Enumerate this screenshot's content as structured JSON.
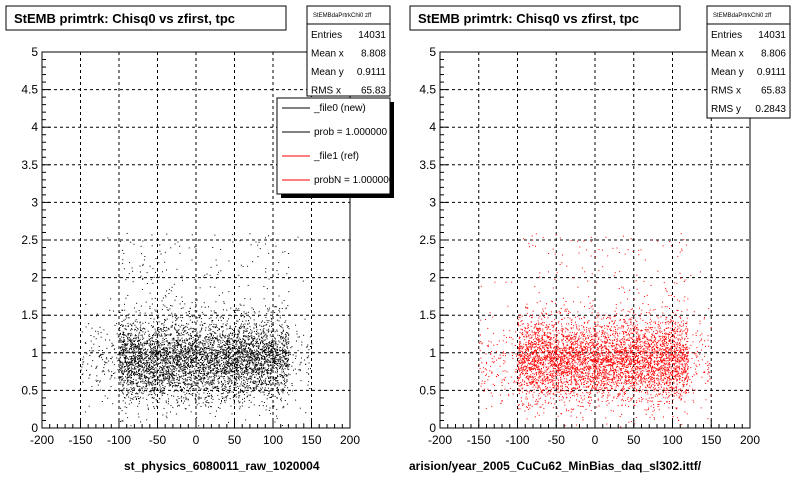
{
  "colors": {
    "new": "#000000",
    "ref": "#ff0000"
  },
  "chart_data": [
    {
      "type": "scatter",
      "title": "StEMB primtrk: Chisq0 vs zfirst, tpc",
      "xlabel": "st_physics_6080011_raw_1020004",
      "ylabel": "",
      "xlim": [
        -200,
        200
      ],
      "ylim": [
        0,
        5
      ],
      "x_ticks": [
        "-200",
        "-150",
        "-100",
        "-50",
        "0",
        "50",
        "100",
        "150",
        "200"
      ],
      "y_ticks": [
        "0",
        "0.5",
        "1",
        "1.5",
        "2",
        "2.5",
        "3",
        "3.5",
        "4",
        "4.5",
        "5"
      ],
      "grid": true,
      "marker_color": "#000000",
      "stats": {
        "name": "StEMBdaPrtrkChi0 zff",
        "rows": [
          {
            "label": "Entries",
            "value": "14031"
          },
          {
            "label": "Mean x",
            "value": "8.808"
          },
          {
            "label": "Mean y",
            "value": "0.9111"
          },
          {
            "label": "RMS x",
            "value": "65.83"
          }
        ]
      },
      "legend": {
        "placement": "top-right",
        "entries": [
          {
            "label": "_file0 (new)",
            "color": "#000000"
          },
          {
            "label": "prob = 1.000000",
            "color": "#000000"
          },
          {
            "label": "_file1 (ref)",
            "color": "#ff0000"
          },
          {
            "label": "probN = 1.000000",
            "color": "#ff0000"
          }
        ]
      },
      "distribution": {
        "x_range": [
          -150,
          150
        ],
        "x_core": [
          -100,
          120
        ],
        "y_center": 0.9111,
        "y_spread": 0.28,
        "n_points": 5200
      }
    },
    {
      "type": "scatter",
      "title": "StEMB primtrk: Chisq0 vs zfirst, tpc",
      "xlabel": "arision/year_2005_CuCu62_MinBias_daq_sl302.ittf/",
      "ylabel": "",
      "xlim": [
        -200,
        200
      ],
      "ylim": [
        0,
        5
      ],
      "x_ticks": [
        "-200",
        "-150",
        "-100",
        "-50",
        "0",
        "50",
        "100",
        "150",
        "200"
      ],
      "y_ticks": [
        "0",
        "0.5",
        "1",
        "1.5",
        "2",
        "2.5",
        "3",
        "3.5",
        "4",
        "4.5",
        "5"
      ],
      "grid": true,
      "marker_color": "#ff0000",
      "stats": {
        "name": "StEMBdaPrtrkChi0 zff",
        "rows": [
          {
            "label": "Entries",
            "value": "14031"
          },
          {
            "label": "Mean x",
            "value": "8.806"
          },
          {
            "label": "Mean y",
            "value": "0.9111"
          },
          {
            "label": "RMS x",
            "value": "65.83"
          },
          {
            "label": "RMS y",
            "value": "0.2843"
          }
        ]
      },
      "distribution": {
        "x_range": [
          -150,
          150
        ],
        "x_core": [
          -100,
          120
        ],
        "y_center": 0.9111,
        "y_spread": 0.28,
        "n_points": 5200
      }
    }
  ]
}
